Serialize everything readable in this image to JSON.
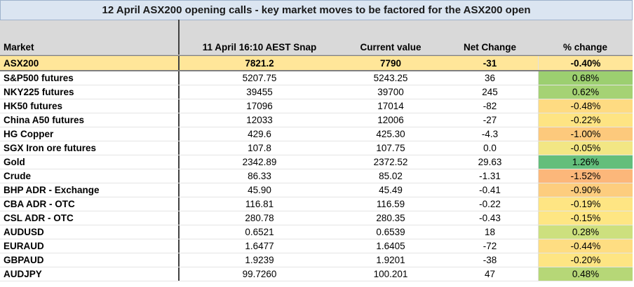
{
  "title": "12 April ASX200 opening calls - key market moves to be factored for the ASX200 open",
  "headers": {
    "market": "Market",
    "snap": "11 April 16:10 AEST Snap",
    "current": "Current value",
    "net": "Net Change",
    "pct": "% change"
  },
  "asx": {
    "market": "ASX200",
    "snap": "7821.2",
    "current": "7790",
    "net": "-31",
    "pct": "-0.40%"
  },
  "rows": [
    {
      "market": "S&P500 futures",
      "snap": "5207.75",
      "current": "5243.25",
      "net": "36",
      "pct": "0.68%",
      "color": "#9ccf70"
    },
    {
      "market": "NKY225 futures",
      "snap": "39455",
      "current": "39700",
      "net": "245",
      "pct": "0.62%",
      "color": "#a5d274"
    },
    {
      "market": "HK50 futures",
      "snap": "17096",
      "current": "17014",
      "net": "-82",
      "pct": "-0.48%",
      "color": "#fedb82"
    },
    {
      "market": "China A50 futures",
      "snap": "12033",
      "current": "12006",
      "net": "-27",
      "pct": "-0.22%",
      "color": "#fee483"
    },
    {
      "market": "HG Copper",
      "snap": "429.6",
      "current": "425.30",
      "net": "-4.3",
      "pct": "-1.00%",
      "color": "#fdc97c"
    },
    {
      "market": "SGX Iron ore futures",
      "snap": "107.8",
      "current": "107.75",
      "net": "0.0",
      "pct": "-0.05%",
      "color": "#f2e684"
    },
    {
      "market": "Gold",
      "snap": "2342.89",
      "current": "2372.52",
      "net": "29.63",
      "pct": "1.26%",
      "color": "#63be7b"
    },
    {
      "market": "Crude",
      "snap": "86.33",
      "current": "85.02",
      "net": "-1.31",
      "pct": "-1.52%",
      "color": "#fcb77a"
    },
    {
      "market": "BHP ADR - Exchange",
      "snap": "45.90",
      "current": "45.49",
      "net": "-0.41",
      "pct": "-0.90%",
      "color": "#fdcd7e"
    },
    {
      "market": "CBA ADR - OTC",
      "snap": "116.81",
      "current": "116.59",
      "net": "-0.22",
      "pct": "-0.19%",
      "color": "#fee583"
    },
    {
      "market": "CSL ADR - OTC",
      "snap": "280.78",
      "current": "280.35",
      "net": "-0.43",
      "pct": "-0.15%",
      "color": "#fee683"
    },
    {
      "market": "AUDUSD",
      "snap": "0.6521",
      "current": "0.6539",
      "net": "18",
      "pct": "0.28%",
      "color": "#cde07e"
    },
    {
      "market": "EURAUD",
      "snap": "1.6477",
      "current": "1.6405",
      "net": "-72",
      "pct": "-0.44%",
      "color": "#fedd82"
    },
    {
      "market": "GBPAUD",
      "snap": "1.9239",
      "current": "1.9201",
      "net": "-38",
      "pct": "-0.20%",
      "color": "#fee583"
    },
    {
      "market": "AUDJPY",
      "snap": "99.7260",
      "current": "100.201",
      "net": "47",
      "pct": "0.48%",
      "color": "#b6d777"
    }
  ]
}
